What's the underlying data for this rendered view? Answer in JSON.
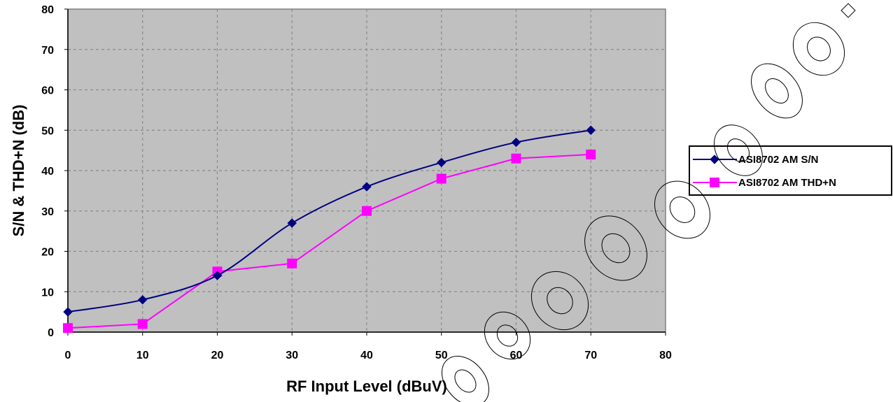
{
  "chart_data": {
    "type": "line",
    "title": "",
    "xlabel": "RF Input Level (dBuV)",
    "ylabel": "S/N & THD+N (dB)",
    "xlim": [
      0,
      80
    ],
    "ylim": [
      0,
      80
    ],
    "x_ticks": [
      "0",
      "10",
      "20",
      "30",
      "40",
      "50",
      "60",
      "70",
      "80"
    ],
    "y_ticks": [
      "0",
      "10",
      "20",
      "30",
      "40",
      "50",
      "60",
      "70",
      "80"
    ],
    "grid": true,
    "plot_background": "#c0c0c0",
    "legend_position": "right",
    "series": [
      {
        "name": "ASI8702 AM S/N",
        "color": "#000080",
        "marker": "diamond",
        "smooth": true,
        "x": [
          0,
          10,
          20,
          30,
          40,
          50,
          60,
          70
        ],
        "y": [
          5,
          8,
          14,
          27,
          36,
          42,
          47,
          50
        ]
      },
      {
        "name": "ASI8702 AM THD+N",
        "color": "#ff00ff",
        "marker": "square",
        "smooth": false,
        "x": [
          0,
          10,
          20,
          30,
          40,
          50,
          60,
          70
        ],
        "y": [
          1,
          2,
          15,
          17,
          30,
          38,
          43,
          44
        ]
      }
    ]
  }
}
